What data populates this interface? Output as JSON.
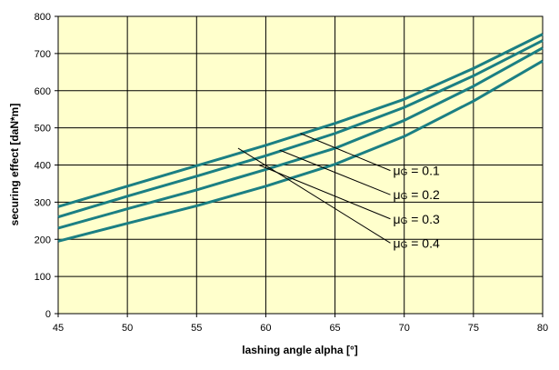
{
  "chart_data": {
    "type": "line",
    "title": "",
    "xlabel": "lashing angle alpha [°]",
    "ylabel": "securing effect [daN*m]",
    "xlim": [
      45,
      80
    ],
    "ylim": [
      0,
      800
    ],
    "x_ticks": [
      45,
      50,
      55,
      60,
      65,
      70,
      75,
      80
    ],
    "y_ticks": [
      0,
      100,
      200,
      300,
      400,
      500,
      600,
      700,
      800
    ],
    "grid": true,
    "plot_background": "#ffffcc",
    "line_color": "#1b7f83",
    "series": [
      {
        "name": "μG = 0.1",
        "legend": {
          "symbol": "μ",
          "subscript": "G",
          "value": "= 0.1"
        },
        "x": [
          45,
          50,
          55,
          60,
          65,
          70,
          75,
          80
        ],
        "y": [
          288,
          343,
          398,
          453,
          512,
          577,
          660,
          752
        ]
      },
      {
        "name": "μG = 0.2",
        "legend": {
          "symbol": "μ",
          "subscript": "G",
          "value": "= 0.2"
        },
        "x": [
          45,
          50,
          55,
          60,
          65,
          70,
          75,
          80
        ],
        "y": [
          260,
          316,
          370,
          425,
          485,
          555,
          640,
          735
        ]
      },
      {
        "name": "μG = 0.3",
        "legend": {
          "symbol": "μ",
          "subscript": "G",
          "value": "= 0.3"
        },
        "x": [
          45,
          50,
          55,
          60,
          65,
          70,
          75,
          80
        ],
        "y": [
          230,
          282,
          333,
          388,
          445,
          520,
          612,
          715
        ]
      },
      {
        "name": "μG = 0.4",
        "legend": {
          "symbol": "μ",
          "subscript": "G",
          "value": "= 0.4"
        },
        "x": [
          45,
          50,
          55,
          60,
          65,
          70,
          75,
          80
        ],
        "y": [
          195,
          243,
          290,
          343,
          402,
          477,
          572,
          680
        ]
      }
    ],
    "annotations": [
      {
        "series": 0,
        "from": [
          62.5,
          485
        ],
        "to": [
          69,
          385
        ]
      },
      {
        "series": 1,
        "from": [
          61,
          440
        ],
        "to": [
          69,
          320
        ]
      },
      {
        "series": 2,
        "from": [
          59.5,
          400
        ],
        "to": [
          69,
          255
        ]
      },
      {
        "series": 3,
        "from": [
          58,
          445
        ],
        "to": [
          69,
          190
        ]
      }
    ]
  }
}
